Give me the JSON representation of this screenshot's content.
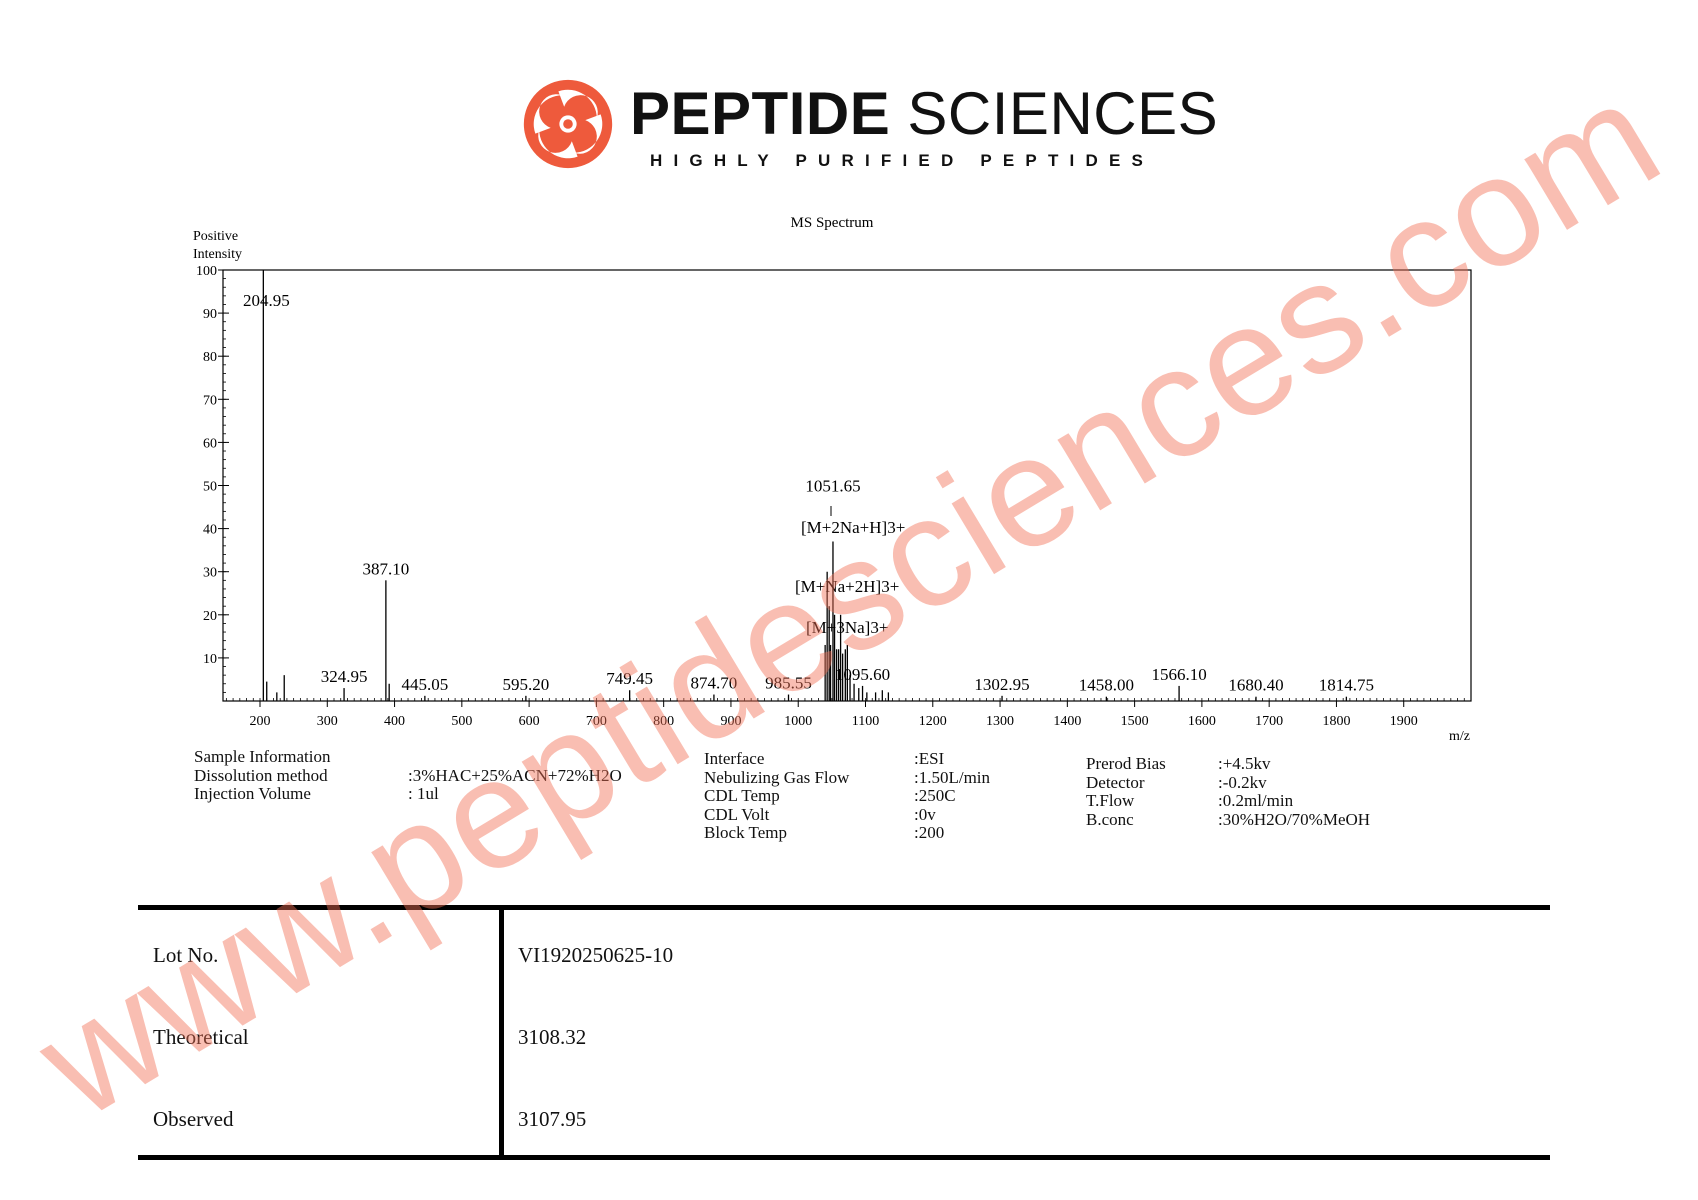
{
  "logo": {
    "brand_bold": "PEPTIDE",
    "brand_rest": " SCIENCES",
    "tagline": "HIGHLY PURIFIED PEPTIDES",
    "accent_color": "#ee5a3c"
  },
  "chart_data": {
    "type": "bar",
    "title": "MS Spectrum",
    "ylabel_line1": "Positive",
    "ylabel_line2": "Intensity",
    "xlabel": "m/z",
    "xlim": [
      145,
      2000
    ],
    "ylim": [
      0,
      100
    ],
    "x_ticks": [
      "200",
      "300",
      "400",
      "500",
      "600",
      "700",
      "800",
      "900",
      "1000",
      "1100",
      "1200",
      "1300",
      "1400",
      "1500",
      "1600",
      "1700",
      "1800",
      "1900"
    ],
    "y_ticks": [
      "10",
      "20",
      "30",
      "40",
      "50",
      "60",
      "70",
      "80",
      "90",
      "100"
    ],
    "peaks": [
      {
        "x": 204.95,
        "y": 100,
        "label": "204.95"
      },
      {
        "x": 210,
        "y": 4.5
      },
      {
        "x": 225,
        "y": 2
      },
      {
        "x": 236,
        "y": 6
      },
      {
        "x": 324.95,
        "y": 3,
        "label": "324.95"
      },
      {
        "x": 387.1,
        "y": 28,
        "label": "387.10"
      },
      {
        "x": 392,
        "y": 4
      },
      {
        "x": 445.05,
        "y": 1.2,
        "label": "445.05"
      },
      {
        "x": 595.2,
        "y": 1.2,
        "label": "595.20"
      },
      {
        "x": 749.45,
        "y": 2.5,
        "label": "749.45"
      },
      {
        "x": 874.7,
        "y": 1.5,
        "label": "874.70"
      },
      {
        "x": 985.55,
        "y": 1.5,
        "label": "985.55"
      },
      {
        "x": 1040,
        "y": 13
      },
      {
        "x": 1043,
        "y": 30
      },
      {
        "x": 1046,
        "y": 22
      },
      {
        "x": 1048,
        "y": 13
      },
      {
        "x": 1051.65,
        "y": 37,
        "label": "1051.65"
      },
      {
        "x": 1054,
        "y": 20
      },
      {
        "x": 1057,
        "y": 12
      },
      {
        "x": 1060,
        "y": 12
      },
      {
        "x": 1063,
        "y": 20
      },
      {
        "x": 1066,
        "y": 11
      },
      {
        "x": 1070,
        "y": 12
      },
      {
        "x": 1073,
        "y": 13
      },
      {
        "x": 1077,
        "y": 6
      },
      {
        "x": 1083,
        "y": 4
      },
      {
        "x": 1090,
        "y": 3
      },
      {
        "x": 1095.6,
        "y": 3.5,
        "label": "1095.60"
      },
      {
        "x": 1102,
        "y": 2
      },
      {
        "x": 1115,
        "y": 2
      },
      {
        "x": 1125,
        "y": 2.5
      },
      {
        "x": 1134,
        "y": 2
      },
      {
        "x": 1302.95,
        "y": 1.2,
        "label": "1302.95"
      },
      {
        "x": 1458.0,
        "y": 1,
        "label": "1458.00"
      },
      {
        "x": 1566.1,
        "y": 3.5,
        "label": "1566.10"
      },
      {
        "x": 1680.4,
        "y": 1,
        "label": "1680.40"
      },
      {
        "x": 1814.75,
        "y": 1,
        "label": "1814.75"
      }
    ],
    "annotations": [
      "[M+2Na+H]3+",
      "[M+Na+2H]3+",
      "[M+3Na]3+"
    ]
  },
  "info": {
    "col1_labels": [
      "Sample Information",
      "Dissolution method",
      "Injection Volume"
    ],
    "col1_values": [
      "",
      ":3%HAC+25%ACN+72%H2O",
      ": 1ul"
    ],
    "col2_labels": [
      "Interface",
      "Nebulizing Gas Flow",
      "CDL Temp",
      "CDL Volt",
      "Block Temp"
    ],
    "col2_values": [
      ":ESI",
      ":1.50L/min",
      ":250C",
      ":0v",
      ":200"
    ],
    "col3_labels": [
      "Prerod Bias",
      "Detector",
      "T.Flow",
      "B.conc"
    ],
    "col3_values": [
      ":+4.5kv",
      ":-0.2kv",
      ":0.2ml/min",
      ":30%H2O/70%MeOH"
    ]
  },
  "results": {
    "lot_label": "Lot No.",
    "lot_value": "VI1920250625-10",
    "theoretical_label": "Theoretical",
    "theoretical_value": "3108.32",
    "observed_label": "Observed",
    "observed_value": "3107.95"
  },
  "watermark": "www.peptidesciences.com"
}
